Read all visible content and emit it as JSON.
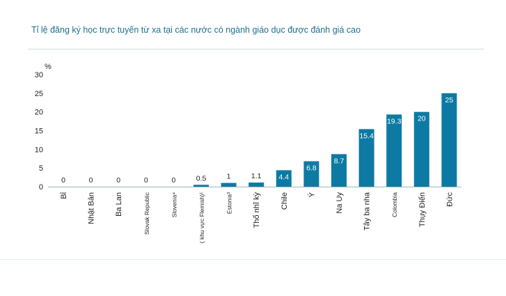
{
  "chart_data": {
    "type": "bar",
    "title": "Tỉ lệ đăng ký học trực tuyến từ xa tại các nước có ngành giáo dục được đánh giá cao",
    "ylabel": "%",
    "xlabel": "",
    "ylim": [
      0,
      30
    ],
    "yticks": [
      "0",
      "5",
      "10",
      "15",
      "20",
      "25",
      "30"
    ],
    "grid": false,
    "legend": "none",
    "bar_color": "#0d7aa3",
    "categories": [
      "Bỉ",
      "Nhật Bản",
      "Ba Lan",
      "Slovak Republic",
      "Slovenia⁴",
      "( khu vực Flemish)¹",
      "Estonia³",
      "Thổ nhĩ kỳ",
      "Chile",
      "Ý",
      "Na Uy",
      "Tây ba nha",
      "Colombia",
      "Thụy Điển",
      "Đức"
    ],
    "values": [
      0,
      0,
      0,
      0,
      0,
      0.5,
      1,
      1.1,
      4.4,
      6.8,
      8.7,
      15.4,
      19.3,
      20,
      25
    ],
    "value_labels": [
      "0",
      "0",
      "0",
      "0",
      "0",
      "0.5",
      "1",
      "1.1",
      "4.4",
      "6.8",
      "8.7",
      "15.4",
      "19.3",
      "20",
      "25"
    ]
  }
}
